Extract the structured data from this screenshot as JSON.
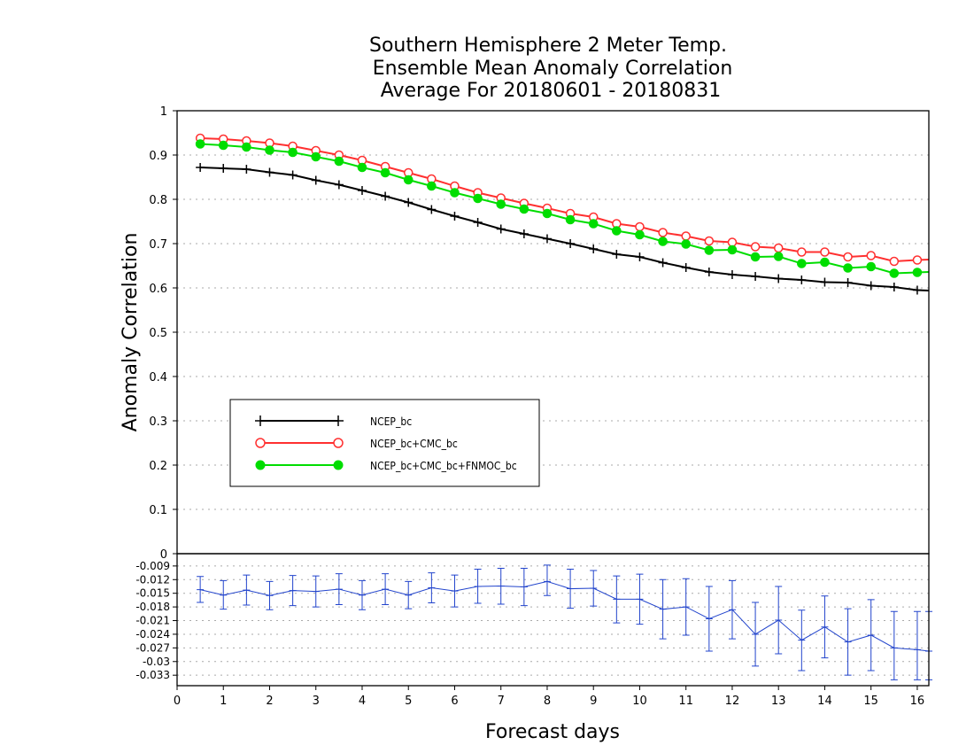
{
  "title_lines": [
    "Southern Hemisphere 2 Meter Temp.",
    "Ensemble Mean Anomaly Correlation",
    "Average For 20180601 - 20180831"
  ],
  "colors": {
    "ncep_bc": "#000000",
    "ncep_cmc": "#ff3030",
    "ncep_cmc_fnmoc": "#00dd00",
    "diff": "#2244cc",
    "grid": "#aaaaaa"
  },
  "chart_data": [
    {
      "type": "line",
      "xlabel": "",
      "ylabel": "Anomaly Correlation",
      "xlim": [
        0,
        16.25
      ],
      "ylim": [
        0,
        1
      ],
      "yticks": [
        0,
        0.1,
        0.2,
        0.3,
        0.4,
        0.5,
        0.6,
        0.7,
        0.8,
        0.9,
        1
      ],
      "ytick_labels": [
        "0",
        "0.1",
        "0.2",
        "0.3",
        "0.4",
        "0.5",
        "0.6",
        "0.7",
        "0.8",
        "0.9",
        "1"
      ],
      "grid": true,
      "legend_position": "lower-left",
      "x": [
        0.5,
        1,
        1.5,
        2,
        2.5,
        3,
        3.5,
        4,
        4.5,
        5,
        5.5,
        6,
        6.5,
        7,
        7.5,
        8,
        8.5,
        9,
        9.5,
        10,
        10.5,
        11,
        11.5,
        12,
        12.5,
        13,
        13.5,
        14,
        14.5,
        15,
        15.5,
        16,
        16.25
      ],
      "series": [
        {
          "name": "NCEP_bc",
          "marker": "plus",
          "values": [
            0.872,
            0.87,
            0.868,
            0.861,
            0.855,
            0.843,
            0.833,
            0.82,
            0.807,
            0.793,
            0.777,
            0.762,
            0.748,
            0.733,
            0.722,
            0.711,
            0.7,
            0.688,
            0.676,
            0.67,
            0.657,
            0.646,
            0.636,
            0.63,
            0.626,
            0.621,
            0.618,
            0.613,
            0.612,
            0.605,
            0.602,
            0.595,
            0.594
          ]
        },
        {
          "name": "NCEP_bc+CMC_bc",
          "marker": "open-circle",
          "values": [
            0.938,
            0.936,
            0.932,
            0.927,
            0.92,
            0.91,
            0.9,
            0.888,
            0.874,
            0.86,
            0.846,
            0.83,
            0.815,
            0.803,
            0.791,
            0.78,
            0.768,
            0.76,
            0.745,
            0.738,
            0.725,
            0.717,
            0.706,
            0.703,
            0.693,
            0.69,
            0.681,
            0.681,
            0.67,
            0.673,
            0.66,
            0.663,
            0.664
          ]
        },
        {
          "name": "NCEP_bc+CMC_bc+FNMOC_bc",
          "marker": "filled-circle",
          "values": [
            0.925,
            0.922,
            0.918,
            0.911,
            0.906,
            0.896,
            0.886,
            0.872,
            0.86,
            0.844,
            0.83,
            0.815,
            0.802,
            0.789,
            0.778,
            0.768,
            0.754,
            0.745,
            0.729,
            0.72,
            0.705,
            0.699,
            0.685,
            0.686,
            0.67,
            0.671,
            0.655,
            0.658,
            0.645,
            0.648,
            0.633,
            0.635,
            0.636
          ]
        }
      ]
    },
    {
      "type": "line",
      "xlabel": "Forecast days",
      "ylabel": "",
      "xlim": [
        0,
        16.25
      ],
      "ylim": [
        -0.0353,
        -0.0063
      ],
      "yticks": [
        -0.009,
        -0.012,
        -0.015,
        -0.018,
        -0.021,
        -0.024,
        -0.027,
        -0.03,
        -0.033
      ],
      "ytick_labels": [
        "-0.009",
        "-0.012",
        "-0.015",
        "-0.018",
        "-0.021",
        "-0.024",
        "-0.027",
        "-0.03",
        "-0.033"
      ],
      "xticks": [
        0,
        1,
        2,
        3,
        4,
        5,
        6,
        7,
        8,
        9,
        10,
        11,
        12,
        13,
        14,
        15,
        16
      ],
      "xtick_labels": [
        "0",
        "1",
        "2",
        "3",
        "4",
        "5",
        "6",
        "7",
        "8",
        "9",
        "10",
        "11",
        "12",
        "13",
        "14",
        "15",
        "16"
      ],
      "grid": true,
      "x": [
        0.5,
        1,
        1.5,
        2,
        2.5,
        3,
        3.5,
        4,
        4.5,
        5,
        5.5,
        6,
        6.5,
        7,
        7.5,
        8,
        8.5,
        9,
        9.5,
        10,
        10.5,
        11,
        11.5,
        12,
        12.5,
        13,
        13.5,
        14,
        14.5,
        15,
        15.5,
        16,
        16.25
      ],
      "series": [
        {
          "values": [
            -0.0142,
            -0.0154,
            -0.0143,
            -0.0155,
            -0.0144,
            -0.0146,
            -0.0141,
            -0.0154,
            -0.0141,
            -0.0154,
            -0.0138,
            -0.0145,
            -0.0135,
            -0.0134,
            -0.0136,
            -0.0124,
            -0.014,
            -0.0139,
            -0.0163,
            -0.0163,
            -0.0185,
            -0.018,
            -0.0206,
            -0.0186,
            -0.024,
            -0.0209,
            -0.0253,
            -0.0224,
            -0.0257,
            -0.0242,
            -0.027,
            -0.0274,
            -0.0277
          ],
          "error_low": [
            -0.017,
            -0.0185,
            -0.0176,
            -0.0186,
            -0.0177,
            -0.018,
            -0.0175,
            -0.0186,
            -0.0175,
            -0.0184,
            -0.0171,
            -0.018,
            -0.0172,
            -0.0174,
            -0.0177,
            -0.0155,
            -0.0183,
            -0.0178,
            -0.0215,
            -0.0218,
            -0.025,
            -0.0242,
            -0.0277,
            -0.025,
            -0.031,
            -0.0283,
            -0.032,
            -0.0292,
            -0.033,
            -0.032,
            -0.034,
            -0.034,
            -0.034
          ],
          "error_high": [
            -0.0113,
            -0.0122,
            -0.011,
            -0.0124,
            -0.0111,
            -0.0112,
            -0.0107,
            -0.0122,
            -0.0107,
            -0.0124,
            -0.0105,
            -0.011,
            -0.0097,
            -0.0095,
            -0.0095,
            -0.0088,
            -0.0097,
            -0.01,
            -0.0112,
            -0.0108,
            -0.012,
            -0.0118,
            -0.0135,
            -0.0122,
            -0.017,
            -0.0135,
            -0.0187,
            -0.0156,
            -0.0184,
            -0.0164,
            -0.019,
            -0.019,
            -0.019
          ]
        }
      ]
    }
  ]
}
